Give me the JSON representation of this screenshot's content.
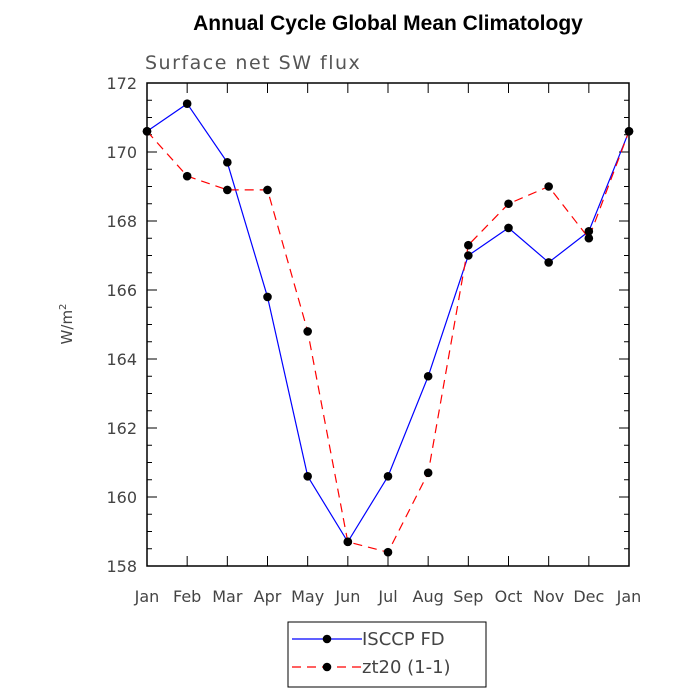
{
  "chart_data": {
    "type": "line",
    "title": "Annual Cycle Global Mean Climatology",
    "subtitle": "Surface net SW flux",
    "ylabel": "W/m",
    "ylabel_sup": "2",
    "categories": [
      "Jan",
      "Feb",
      "Mar",
      "Apr",
      "May",
      "Jun",
      "Jul",
      "Aug",
      "Sep",
      "Oct",
      "Nov",
      "Dec",
      "Jan"
    ],
    "ylim": [
      158,
      172
    ],
    "yticks": [
      158,
      160,
      162,
      164,
      166,
      168,
      170,
      172
    ],
    "series": [
      {
        "name": "ISCCP FD",
        "color": "#0000ff",
        "dash": "solid",
        "marker": "filled-circle",
        "values": [
          170.6,
          171.4,
          169.7,
          165.8,
          160.6,
          158.7,
          160.6,
          163.5,
          167.0,
          167.8,
          166.8,
          167.7,
          170.6
        ]
      },
      {
        "name": "zt20 (1-1)",
        "color": "#ff0000",
        "dash": "dashed",
        "marker": "filled-circle",
        "values": [
          170.6,
          169.3,
          168.9,
          168.9,
          164.8,
          158.7,
          158.4,
          160.7,
          167.3,
          168.5,
          169.0,
          167.5,
          170.6
        ]
      }
    ],
    "grid": false,
    "legend_position": "bottom-center"
  }
}
